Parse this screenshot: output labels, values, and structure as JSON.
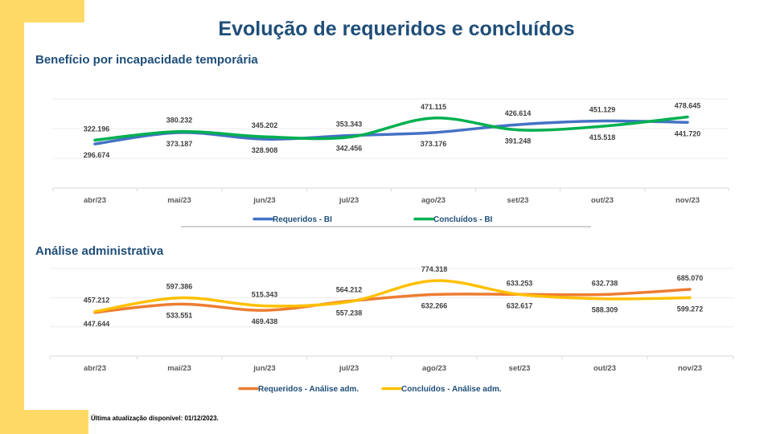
{
  "page": {
    "title": "Evolução de requeridos e concluídos",
    "footer": "Última atualização disponível:  01/12/2023.",
    "accent_color": "#ffd966"
  },
  "chart_data": [
    {
      "type": "line",
      "title": "Benefício por incapacidade temporária",
      "categories": [
        "abr/23",
        "mai/23",
        "jun/23",
        "jul/23",
        "ago/23",
        "set/23",
        "out/23",
        "nov/23"
      ],
      "ylim": [
        0,
        600
      ],
      "grid": true,
      "smooth": true,
      "legend_position": "bottom",
      "series": [
        {
          "name": "Requeridos - BI",
          "color": "#4472c4",
          "values": [
            296.674,
            373.187,
            328.908,
            353.343,
            373.176,
            426.614,
            451.129,
            441.72
          ],
          "labels": [
            "296.674",
            "373.187",
            "328.908",
            "353.343",
            "373.176",
            "426.614",
            "451.129",
            "441.720"
          ]
        },
        {
          "name": "Concluídos - BI",
          "color": "#00b050",
          "values": [
            322.196,
            380.232,
            345.202,
            342.456,
            471.115,
            391.248,
            415.518,
            478.645
          ],
          "labels": [
            "322.196",
            "380.232",
            "345.202",
            "342.456",
            "471.115",
            "391.248",
            "415.518",
            "478.645"
          ]
        }
      ]
    },
    {
      "type": "line",
      "title": "Análise administrativa",
      "categories": [
        "abr/23",
        "mai/23",
        "jun/23",
        "jul/23",
        "ago/23",
        "set/23",
        "out/23",
        "nov/23"
      ],
      "ylim": [
        0,
        900
      ],
      "grid": true,
      "smooth": true,
      "legend_position": "bottom",
      "series": [
        {
          "name": "Requeridos - Análise adm.",
          "color": "#ed7d31",
          "values": [
            447.644,
            533.551,
            469.438,
            564.212,
            632.266,
            633.253,
            632.738,
            685.07
          ],
          "labels": [
            "447.644",
            "533.551",
            "469.438",
            "564.212",
            "632.266",
            "633.253",
            "632.738",
            "685.070"
          ]
        },
        {
          "name": "Concluídos - Análise adm.",
          "color": "#ffc000",
          "values": [
            457.212,
            597.386,
            515.343,
            557.238,
            774.318,
            632.617,
            588.309,
            599.272
          ],
          "labels": [
            "457.212",
            "597.386",
            "515.343",
            "557.238",
            "774.318",
            "632.617",
            "588.309",
            "599.272"
          ]
        }
      ]
    }
  ]
}
